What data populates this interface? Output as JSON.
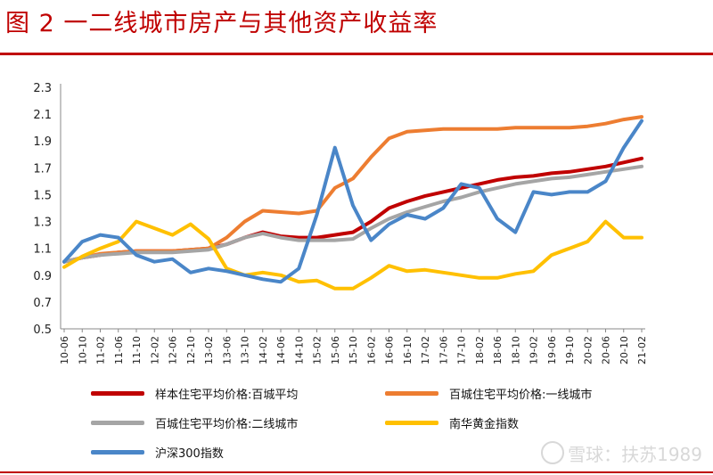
{
  "figure": {
    "title": "图 2  一二线城市房产与其他资产收益率"
  },
  "watermark": {
    "text": "雪球：扶苏1989"
  },
  "chart_data": {
    "type": "line",
    "title": "",
    "xlabel": "",
    "ylabel": "",
    "ylim": [
      0.5,
      2.3
    ],
    "yticks": [
      0.5,
      0.7,
      0.9,
      1.1,
      1.3,
      1.5,
      1.7,
      1.9,
      2.1,
      2.3
    ],
    "ytick_labels": [
      "0.5",
      "0.7",
      "0.9",
      "1.1",
      "1.3",
      "1.5",
      "1.7",
      "1.9",
      "2.1",
      "2.3"
    ],
    "grid": false,
    "legend_position": "bottom",
    "x_categories": [
      "10-06",
      "10-10",
      "11-02",
      "11-06",
      "11-10",
      "12-02",
      "12-06",
      "12-10",
      "13-02",
      "13-06",
      "13-10",
      "14-02",
      "14-06",
      "14-10",
      "15-02",
      "15-06",
      "15-10",
      "16-02",
      "16-06",
      "16-10",
      "17-02",
      "17-06",
      "17-10",
      "18-02",
      "18-06",
      "18-10",
      "19-02",
      "19-06",
      "19-10",
      "20-02",
      "20-06",
      "20-10",
      "21-02"
    ],
    "series": [
      {
        "name": "样本住宅平均价格:百城平均",
        "color": "#c00000",
        "values": [
          1.0,
          1.03,
          1.05,
          1.07,
          1.08,
          1.08,
          1.08,
          1.09,
          1.1,
          1.13,
          1.18,
          1.22,
          1.19,
          1.18,
          1.18,
          1.2,
          1.22,
          1.3,
          1.4,
          1.45,
          1.49,
          1.52,
          1.55,
          1.58,
          1.61,
          1.63,
          1.64,
          1.66,
          1.67,
          1.69,
          1.71,
          1.74,
          1.77
        ]
      },
      {
        "name": "百城住宅平均价格:一线城市",
        "color": "#ed7d31",
        "values": [
          1.0,
          1.03,
          1.06,
          1.07,
          1.08,
          1.08,
          1.08,
          1.09,
          1.1,
          1.18,
          1.3,
          1.38,
          1.37,
          1.36,
          1.38,
          1.55,
          1.62,
          1.78,
          1.92,
          1.97,
          1.98,
          1.99,
          1.99,
          1.99,
          1.99,
          2.0,
          2.0,
          2.0,
          2.0,
          2.01,
          2.03,
          2.06,
          2.08
        ]
      },
      {
        "name": "百城住宅平均价格:二线城市",
        "color": "#a5a5a5",
        "values": [
          1.0,
          1.03,
          1.05,
          1.06,
          1.07,
          1.07,
          1.07,
          1.08,
          1.09,
          1.13,
          1.18,
          1.21,
          1.18,
          1.16,
          1.16,
          1.16,
          1.17,
          1.25,
          1.32,
          1.37,
          1.41,
          1.45,
          1.48,
          1.52,
          1.55,
          1.58,
          1.6,
          1.62,
          1.63,
          1.65,
          1.67,
          1.69,
          1.71
        ]
      },
      {
        "name": "南华黄金指数",
        "color": "#ffc000",
        "values": [
          0.96,
          1.04,
          1.1,
          1.15,
          1.3,
          1.25,
          1.2,
          1.28,
          1.17,
          0.95,
          0.9,
          0.92,
          0.9,
          0.85,
          0.86,
          0.8,
          0.8,
          0.88,
          0.97,
          0.93,
          0.94,
          0.92,
          0.9,
          0.88,
          0.88,
          0.91,
          0.93,
          1.05,
          1.1,
          1.15,
          1.3,
          1.18,
          1.18
        ]
      },
      {
        "name": "沪深300指数",
        "color": "#4a86c8",
        "values": [
          1.0,
          1.15,
          1.2,
          1.18,
          1.05,
          1.0,
          1.02,
          0.92,
          0.95,
          0.93,
          0.9,
          0.87,
          0.85,
          0.95,
          1.35,
          1.85,
          1.42,
          1.16,
          1.28,
          1.35,
          1.32,
          1.4,
          1.58,
          1.55,
          1.32,
          1.22,
          1.52,
          1.5,
          1.52,
          1.52,
          1.6,
          1.85,
          2.05
        ]
      }
    ]
  }
}
